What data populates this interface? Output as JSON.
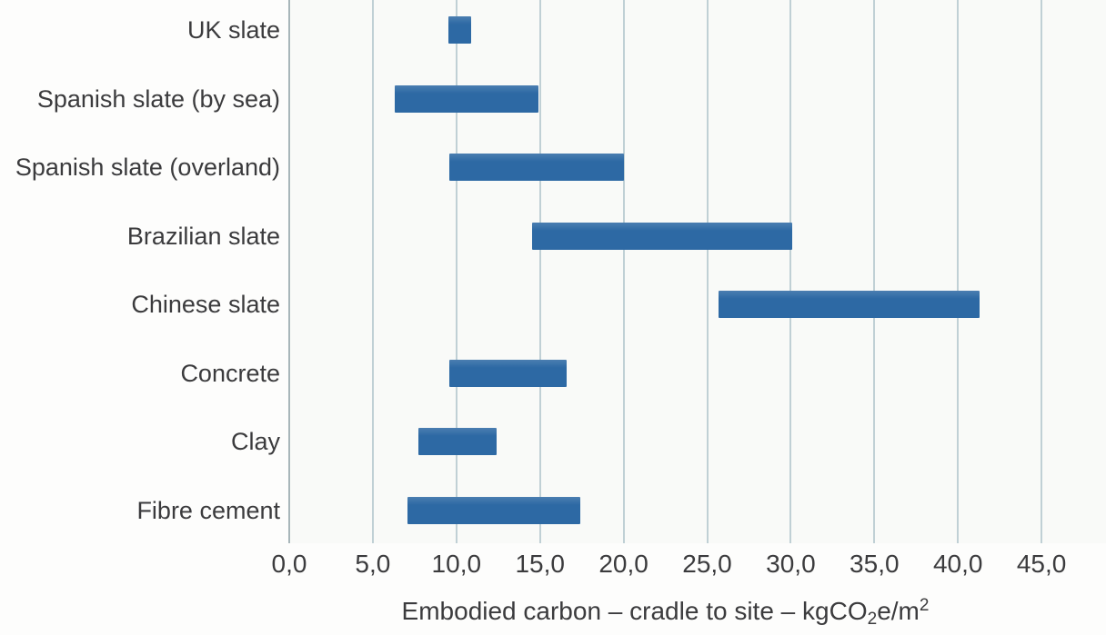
{
  "chart_data": {
    "type": "bar",
    "subtype": "horizontal-range",
    "title": "",
    "categories": [
      "UK slate",
      "Spanish slate (by sea)",
      "Spanish slate (overland)",
      "Brazilian slate",
      "Chinese slate",
      "Concrete",
      "Clay",
      "Fibre cement"
    ],
    "values": [
      [
        9.5,
        10.9
      ],
      [
        6.3,
        14.9
      ],
      [
        9.6,
        20.0
      ],
      [
        14.5,
        30.1
      ],
      [
        25.7,
        41.3
      ],
      [
        9.6,
        16.6
      ],
      [
        7.7,
        12.4
      ],
      [
        7.1,
        17.4
      ]
    ],
    "x_ticks": [
      0,
      5,
      10,
      15,
      20,
      25,
      30,
      35,
      40,
      45
    ],
    "x_tick_labels": [
      "0,0",
      "5,0",
      "10,0",
      "15,0",
      "20,0",
      "25,0",
      "30,0",
      "35,0",
      "40,0",
      "45,0"
    ],
    "xlim": [
      0,
      48.9
    ],
    "grid": "vertical",
    "legend": false,
    "xlabel_plain": "Embodied carbon – cradle to site – kgCO2e/m2",
    "xlabel_rich": {
      "before_sub": "Embodied carbon – cradle to site – kgCO",
      "subscript": "2",
      "between": "e/m",
      "superscript": "2"
    },
    "ylabel": ""
  },
  "style": {
    "bar_color": "#2d69a4",
    "grid_color": "#c0d0d5",
    "zero_line_color": "#a8b6ba",
    "text_color": "#3b3b3d",
    "plot_bg": "#f9faf8",
    "page_bg": "#fdfdfc"
  }
}
